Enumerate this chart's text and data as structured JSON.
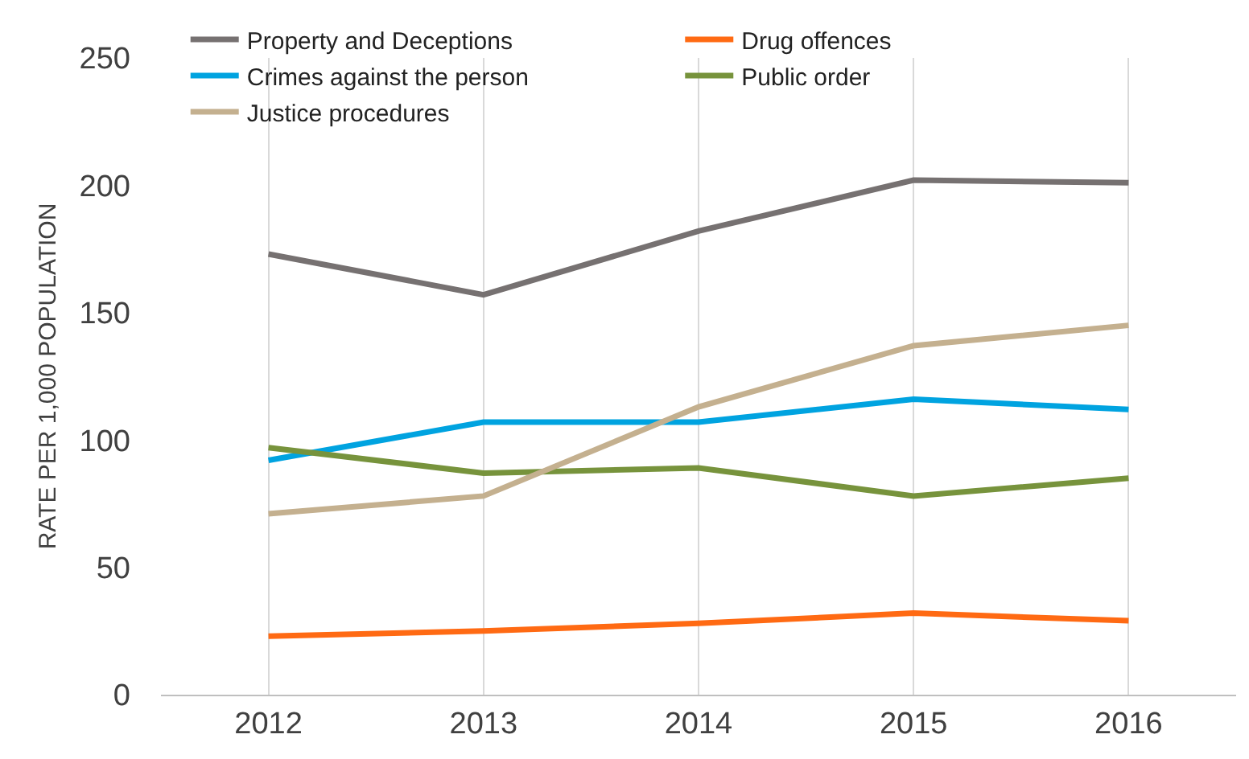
{
  "chart_data": {
    "type": "line",
    "ylabel": "RATE PER 1,000 POPULATION",
    "categories": [
      "2012",
      "2013",
      "2014",
      "2015",
      "2016"
    ],
    "series": [
      {
        "name": "Property and Deceptions",
        "color": "#767171",
        "values": [
          173,
          157,
          182,
          202,
          201
        ]
      },
      {
        "name": "Drug offences",
        "color": "#ff6a13",
        "values": [
          23,
          25,
          28,
          32,
          29
        ]
      },
      {
        "name": "Crimes against the person",
        "color": "#00a3e0",
        "values": [
          92,
          107,
          107,
          116,
          112
        ]
      },
      {
        "name": "Public order",
        "color": "#77933c",
        "values": [
          97,
          87,
          89,
          78,
          85
        ]
      },
      {
        "name": "Justice procedures",
        "color": "#c4b08f",
        "values": [
          71,
          78,
          113,
          137,
          145
        ]
      }
    ],
    "ylim": [
      0,
      250
    ],
    "yticks": [
      0,
      50,
      100,
      150,
      200,
      250
    ],
    "grid": "x",
    "legend": "top left",
    "marker": "none",
    "line_style": "solid"
  }
}
